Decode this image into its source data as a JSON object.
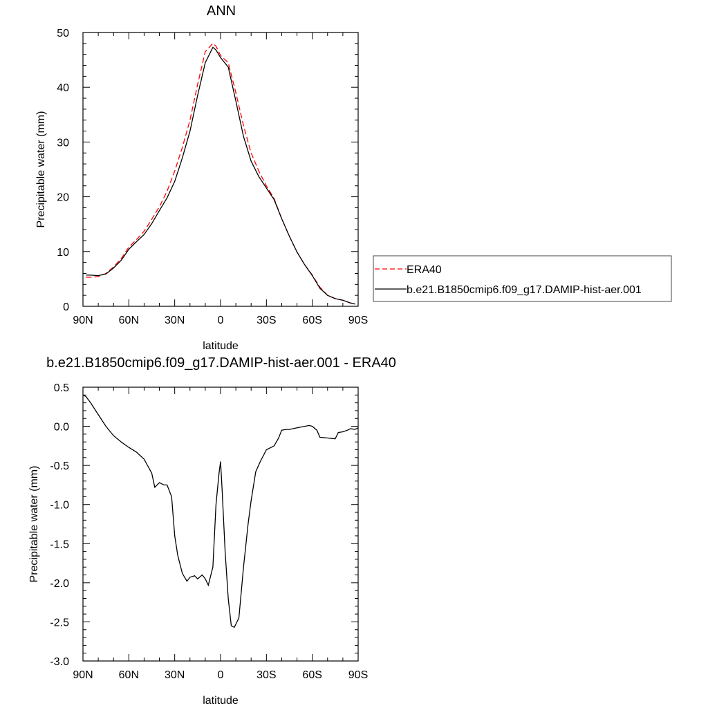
{
  "chart_data": [
    {
      "type": "line",
      "title": "ANN",
      "xlabel": "latitude",
      "ylabel": "Precipitable water (mm)",
      "xlim": [
        90,
        -90
      ],
      "ylim": [
        0,
        50
      ],
      "x_ticks": [
        90,
        60,
        30,
        0,
        -30,
        -60,
        -90
      ],
      "x_tick_labels": [
        "90N",
        "60N",
        "30N",
        "0",
        "30S",
        "60S",
        "90S"
      ],
      "y_ticks": [
        0,
        10,
        20,
        30,
        40,
        50
      ],
      "y_tick_labels": [
        "0",
        "10",
        "20",
        "30",
        "40",
        "50"
      ],
      "legend_position": "right",
      "series": [
        {
          "name": "ERA40",
          "color": "#ff0000",
          "style": "dashed",
          "x": [
            88,
            85,
            80,
            75,
            70,
            65,
            60,
            55,
            50,
            45,
            40,
            35,
            30,
            25,
            20,
            15,
            10,
            5,
            3,
            0,
            -5,
            -10,
            -15,
            -20,
            -25,
            -30,
            -35,
            -40,
            -45,
            -50,
            -55,
            -60,
            -65,
            -70,
            -75,
            -80,
            -85,
            -88
          ],
          "values": [
            5.3,
            5.3,
            5.4,
            6.0,
            7.2,
            8.7,
            10.8,
            12.2,
            13.7,
            15.9,
            18.2,
            21.0,
            24.7,
            29.0,
            34.0,
            40.5,
            46.5,
            48.0,
            47.5,
            45.8,
            44.5,
            39.0,
            33.0,
            28.0,
            24.7,
            22.0,
            19.7,
            16.0,
            12.8,
            9.9,
            7.6,
            5.7,
            3.5,
            2.0,
            1.4,
            1.1,
            0.6,
            0.4
          ]
        },
        {
          "name": "b.e21.B1850cmip6.f09_g17.DAMIP-hist-aer.001",
          "color": "#000000",
          "style": "solid",
          "x": [
            88,
            85,
            80,
            75,
            70,
            65,
            60,
            55,
            50,
            45,
            40,
            35,
            30,
            25,
            20,
            15,
            10,
            5,
            3,
            0,
            -5,
            -10,
            -15,
            -20,
            -25,
            -30,
            -35,
            -40,
            -45,
            -50,
            -55,
            -60,
            -65,
            -70,
            -75,
            -80,
            -85,
            -88
          ],
          "values": [
            5.7,
            5.7,
            5.6,
            5.9,
            7.0,
            8.4,
            10.4,
            11.8,
            13.1,
            15.1,
            17.5,
            19.8,
            22.8,
            27.1,
            32.0,
            38.5,
            44.5,
            47.3,
            46.8,
            45.4,
            43.7,
            37.5,
            31.0,
            26.5,
            23.7,
            21.6,
            19.5,
            16.0,
            12.8,
            9.9,
            7.6,
            5.6,
            3.3,
            2.0,
            1.4,
            1.1,
            0.6,
            0.4
          ]
        }
      ]
    },
    {
      "type": "line",
      "title": "b.e21.B1850cmip6.f09_g17.DAMIP-hist-aer.001 - ERA40",
      "xlabel": "latitude",
      "ylabel": "Precipitable water (mm)",
      "xlim": [
        90,
        -90
      ],
      "ylim": [
        -3.0,
        0.5
      ],
      "x_ticks": [
        90,
        60,
        30,
        0,
        -30,
        -60,
        -90
      ],
      "x_tick_labels": [
        "90N",
        "60N",
        "30N",
        "0",
        "30S",
        "60S",
        "90S"
      ],
      "y_ticks": [
        0.5,
        0.0,
        -0.5,
        -1.0,
        -1.5,
        -2.0,
        -2.5,
        -3.0
      ],
      "y_tick_labels": [
        "0.5",
        "0.0",
        "-0.5",
        "-1.0",
        "-1.5",
        "-2.0",
        "-2.5",
        "-3.0"
      ],
      "series": [
        {
          "color": "#000000",
          "style": "solid",
          "x": [
            90,
            88,
            85,
            80,
            75,
            70,
            65,
            60,
            55,
            50,
            45,
            43,
            40,
            37,
            35,
            32,
            30,
            28,
            25,
            22,
            20,
            17,
            15,
            12,
            10,
            8,
            5,
            3,
            1,
            0,
            -1,
            -3,
            -5,
            -7,
            -9,
            -12,
            -15,
            -18,
            -20,
            -23,
            -26,
            -30,
            -35,
            -38,
            -40,
            -43,
            -45,
            -50,
            -55,
            -58,
            -60,
            -63,
            -65,
            -70,
            -75,
            -77,
            -80,
            -83,
            -85,
            -88,
            -90
          ],
          "values": [
            0.4,
            0.38,
            0.3,
            0.15,
            0.0,
            -0.12,
            -0.2,
            -0.27,
            -0.33,
            -0.42,
            -0.6,
            -0.78,
            -0.72,
            -0.75,
            -0.75,
            -0.9,
            -1.4,
            -1.65,
            -1.88,
            -1.98,
            -1.93,
            -1.91,
            -1.95,
            -1.9,
            -1.95,
            -2.03,
            -1.8,
            -1.0,
            -0.6,
            -0.45,
            -0.8,
            -1.6,
            -2.2,
            -2.55,
            -2.57,
            -2.45,
            -1.8,
            -1.25,
            -0.95,
            -0.58,
            -0.45,
            -0.3,
            -0.25,
            -0.15,
            -0.05,
            -0.04,
            -0.04,
            -0.02,
            0.0,
            0.01,
            0.0,
            -0.05,
            -0.14,
            -0.15,
            -0.16,
            -0.08,
            -0.07,
            -0.05,
            -0.03,
            -0.04,
            -0.02
          ]
        }
      ]
    }
  ]
}
